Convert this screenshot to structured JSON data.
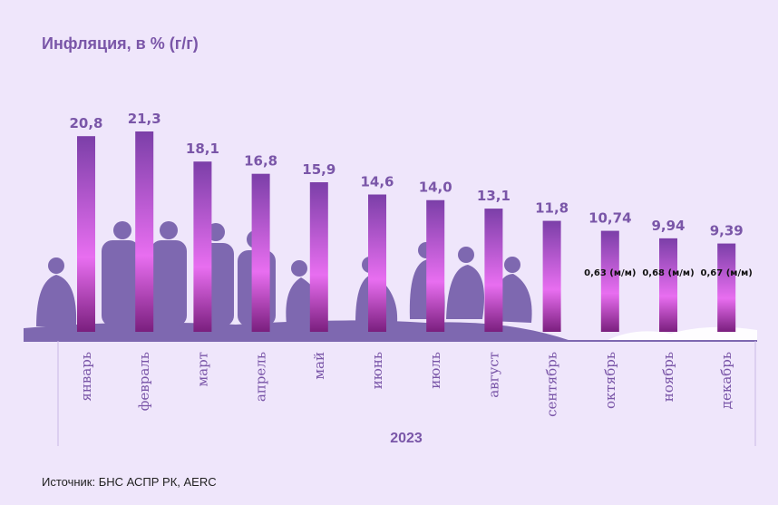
{
  "title": "Инфляция, в % (г/г)",
  "source": "Источник: БНС АСПР РК, AERC",
  "chart_data": {
    "type": "bar",
    "title": "Инфляция, в % (г/г)",
    "xlabel": "2023",
    "categories": [
      "январь",
      "февраль",
      "март",
      "апрель",
      "май",
      "июнь",
      "июль",
      "август",
      "сентябрь",
      "октябрь",
      "ноябрь",
      "декабрь"
    ],
    "values": [
      20.8,
      21.3,
      18.1,
      16.8,
      15.9,
      14.6,
      14.0,
      13.1,
      11.8,
      10.74,
      9.94,
      9.39
    ],
    "value_labels": [
      "20,8",
      "21,3",
      "18,1",
      "16,8",
      "15,9",
      "14,6",
      "14,0",
      "13,1",
      "11,8",
      "10,74",
      "9,94",
      "9,39"
    ],
    "mm_labels": [
      "",
      "",
      "",
      "",
      "",
      "",
      "",
      "",
      "",
      "0,63 (м/м)",
      "0,68 (м/м)",
      "0,67 (м/м)"
    ],
    "ylim": [
      0,
      21.3
    ],
    "grid": false,
    "bar_color_top": "#7b3fa8",
    "bar_color_mid": "#e86ef0",
    "bar_color_bottom": "#7a1f7e"
  }
}
